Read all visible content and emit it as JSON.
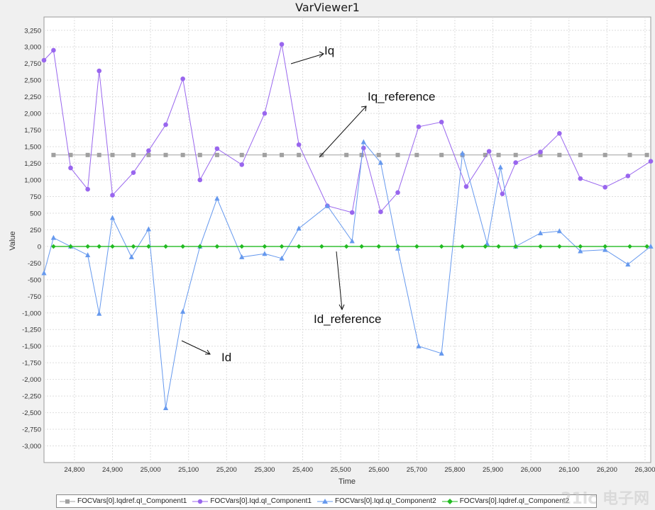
{
  "window": {
    "title": "VarViewer1"
  },
  "chart_data": {
    "type": "line",
    "title": "VarViewer1",
    "xlabel": "Time",
    "ylabel": "Value",
    "xlim": [
      24720,
      26315
    ],
    "ylim": [
      -3250,
      3450
    ],
    "grid": true,
    "legend_position": "bottom",
    "xticks": [
      24800,
      24900,
      25000,
      25100,
      25200,
      25300,
      25400,
      25500,
      25600,
      25700,
      25800,
      25900,
      26000,
      26100,
      26200,
      26300
    ],
    "xtick_labels": [
      "24,800",
      "24,900",
      "25,000",
      "25,100",
      "25,200",
      "25,300",
      "25,400",
      "25,500",
      "25,600",
      "25,700",
      "25,800",
      "25,900",
      "26,000",
      "26,100",
      "26,200",
      "26,300"
    ],
    "yticks": [
      3250,
      3000,
      2750,
      2500,
      2250,
      2000,
      1750,
      1500,
      1250,
      1000,
      750,
      500,
      250,
      0,
      -250,
      -500,
      -750,
      -1000,
      -1250,
      -1500,
      -1750,
      -2000,
      -2250,
      -2500,
      -2750,
      -3000
    ],
    "ytick_labels": [
      "3,250",
      "3,000",
      "2,750",
      "2,500",
      "2,250",
      "2,000",
      "1,750",
      "1,500",
      "1,250",
      "1,000",
      "750",
      "500",
      "250",
      "0",
      "-250",
      "-500",
      "-750",
      "-1,000",
      "-1,250",
      "-1,500",
      "-1,750",
      "-2,000",
      "-2,250",
      "-2,500",
      "-2,750",
      "-3,000"
    ],
    "series": [
      {
        "name": "FOCVars[0].Iqdref.qI_Component1",
        "color": "#a0a0a0",
        "marker": "square",
        "x": [
          24745,
          24790,
          24835,
          24865,
          24900,
          24955,
          24995,
          25040,
          25085,
          25130,
          25175,
          25240,
          25300,
          25345,
          25390,
          25450,
          25515,
          25555,
          25600,
          25650,
          25700,
          25765,
          25820,
          25880,
          25915,
          25960,
          26025,
          26075,
          26130,
          26195,
          26260,
          26305
        ],
        "y": [
          1375,
          1375,
          1375,
          1375,
          1375,
          1375,
          1375,
          1375,
          1375,
          1375,
          1375,
          1375,
          1375,
          1375,
          1375,
          1375,
          1375,
          1375,
          1375,
          1375,
          1375,
          1375,
          1375,
          1375,
          1375,
          1375,
          1375,
          1375,
          1375,
          1375,
          1375,
          1375
        ]
      },
      {
        "name": "FOCVars[0].Iqd.qI_Component1",
        "color": "#9966ee",
        "marker": "circle",
        "x": [
          24720,
          24745,
          24790,
          24835,
          24865,
          24900,
          24955,
          24995,
          25040,
          25085,
          25130,
          25175,
          25240,
          25300,
          25345,
          25390,
          25465,
          25530,
          25560,
          25605,
          25650,
          25705,
          25765,
          25830,
          25890,
          25925,
          25960,
          26025,
          26075,
          26130,
          26195,
          26255,
          26315
        ],
        "y": [
          2800,
          2950,
          1180,
          860,
          2640,
          770,
          1110,
          1440,
          1830,
          2520,
          1000,
          1470,
          1230,
          2000,
          3040,
          1530,
          610,
          510,
          1480,
          520,
          810,
          1800,
          1870,
          900,
          1430,
          790,
          1260,
          1420,
          1700,
          1020,
          890,
          1060,
          1280
        ]
      },
      {
        "name": "FOCVars[0].Iqd.qI_Component2",
        "color": "#6699ee",
        "marker": "triangle",
        "x": [
          24720,
          24745,
          24790,
          24835,
          24865,
          24900,
          24950,
          24995,
          25040,
          25085,
          25130,
          25175,
          25240,
          25300,
          25345,
          25390,
          25465,
          25530,
          25560,
          25605,
          25650,
          25705,
          25765,
          25820,
          25885,
          25920,
          25960,
          26025,
          26075,
          26130,
          26195,
          26255,
          26315
        ],
        "y": [
          -400,
          130,
          0,
          -130,
          -1010,
          430,
          -160,
          260,
          -2430,
          -980,
          0,
          720,
          -160,
          -110,
          -180,
          270,
          610,
          80,
          1570,
          1260,
          -30,
          -1500,
          -1610,
          1400,
          40,
          1190,
          0,
          200,
          230,
          -70,
          -50,
          -270,
          0
        ]
      },
      {
        "name": "FOCVars[0].Iqdref.qI_Component2",
        "color": "#22bb22",
        "marker": "diamond",
        "x": [
          24745,
          24790,
          24835,
          24865,
          24900,
          24955,
          24995,
          25040,
          25085,
          25130,
          25175,
          25240,
          25300,
          25345,
          25390,
          25450,
          25515,
          25555,
          25600,
          25650,
          25700,
          25765,
          25820,
          25880,
          25915,
          25960,
          26025,
          26075,
          26130,
          26195,
          26260,
          26305
        ],
        "y": [
          0,
          0,
          0,
          0,
          0,
          0,
          0,
          0,
          0,
          0,
          0,
          0,
          0,
          0,
          0,
          0,
          0,
          0,
          0,
          0,
          0,
          0,
          0,
          0,
          0,
          0,
          0,
          0,
          0,
          0,
          0,
          0
        ]
      }
    ],
    "annotations": [
      {
        "text": "Iq"
      },
      {
        "text": "Iq_reference"
      },
      {
        "text": "Id_reference"
      },
      {
        "text": "Id"
      }
    ]
  },
  "watermark": "21ic 电子网"
}
